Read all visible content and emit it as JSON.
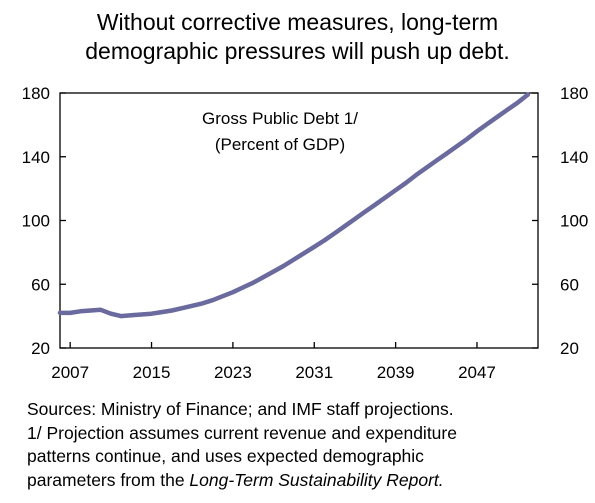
{
  "title_lines": [
    "Without corrective measures, long-term",
    "demographic pressures will push up debt."
  ],
  "chart_data": {
    "type": "line",
    "annotation_lines": [
      "Gross Public Debt 1/",
      "(Percent of GDP)"
    ],
    "x_ticks": [
      "2007",
      "2015",
      "2023",
      "2031",
      "2039",
      "2047"
    ],
    "y_ticks": [
      "20",
      "60",
      "100",
      "140",
      "180"
    ],
    "y_ticks_right": [
      "20",
      "60",
      "100",
      "140",
      "180"
    ],
    "xlim": [
      2006,
      2053
    ],
    "ylim": [
      20,
      180
    ],
    "grid": false,
    "line_color": "#6A6A9E",
    "series": [
      {
        "x": [
          2006,
          2007,
          2008,
          2009,
          2010,
          2011,
          2012,
          2013,
          2014,
          2015,
          2016,
          2017,
          2018,
          2019,
          2020,
          2021,
          2022,
          2023,
          2024,
          2025,
          2026,
          2027,
          2028,
          2029,
          2030,
          2031,
          2032,
          2033,
          2034,
          2035,
          2036,
          2037,
          2038,
          2039,
          2040,
          2041,
          2042,
          2043,
          2044,
          2045,
          2046,
          2047,
          2048,
          2049,
          2050,
          2051,
          2052
        ],
        "values": [
          42,
          42,
          43,
          43.5,
          44,
          41.5,
          40,
          40.5,
          41,
          41.5,
          42.5,
          43.5,
          45,
          46.5,
          48,
          50,
          52.5,
          55,
          58,
          61,
          64.5,
          68,
          71.5,
          75.5,
          79.5,
          83.5,
          87.5,
          92,
          96.5,
          101,
          105.5,
          110,
          114.5,
          119,
          123.5,
          128.5,
          133,
          137.5,
          142,
          146.5,
          151,
          156,
          160.5,
          165,
          169.5,
          174,
          179
        ]
      }
    ]
  },
  "source_lines": [
    "Sources: Ministry of Finance; and IMF staff projections.",
    "1/ Projection assumes current revenue and expenditure",
    "patterns continue, and uses expected demographic"
  ],
  "source_last_prefix": "parameters from the ",
  "source_last_italic": "Long-Term Sustainability Report."
}
